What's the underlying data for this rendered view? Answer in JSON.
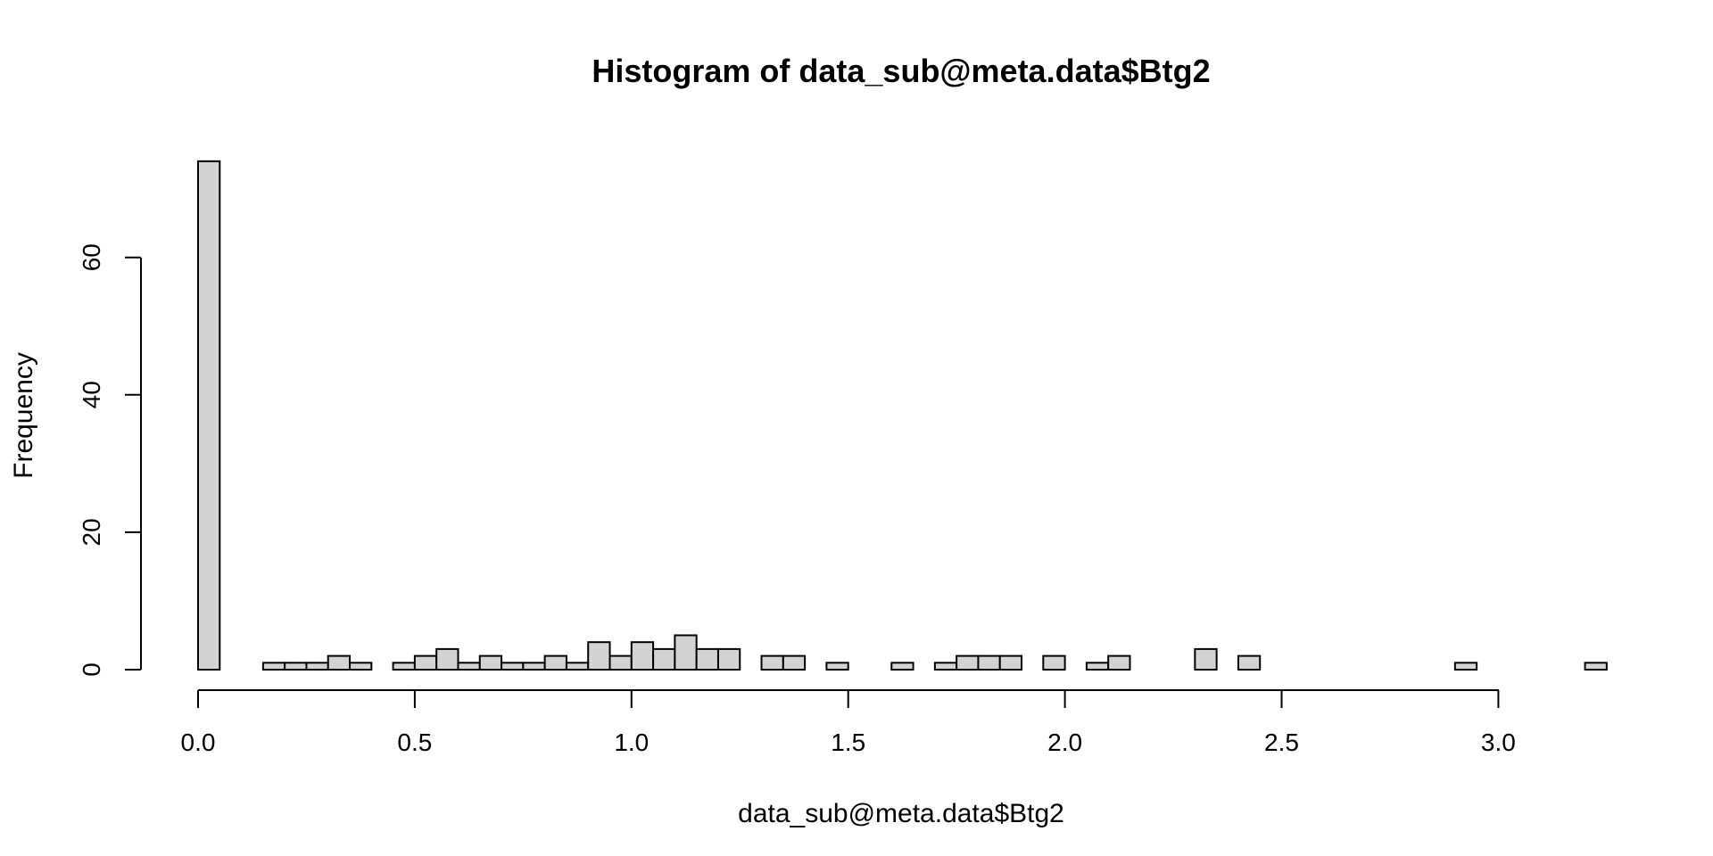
{
  "chart_data": {
    "type": "bar",
    "title": "Histogram of data_sub@meta.data$Btg2",
    "xlabel": "data_sub@meta.data$Btg2",
    "ylabel": "Frequency",
    "bin_width": 0.05,
    "bin_starts": [
      0.0,
      0.05,
      0.1,
      0.15,
      0.2,
      0.25,
      0.3,
      0.35,
      0.4,
      0.45,
      0.5,
      0.55,
      0.6,
      0.65,
      0.7,
      0.75,
      0.8,
      0.85,
      0.9,
      0.95,
      1.0,
      1.05,
      1.1,
      1.15,
      1.2,
      1.25,
      1.3,
      1.35,
      1.4,
      1.45,
      1.5,
      1.55,
      1.6,
      1.65,
      1.7,
      1.75,
      1.8,
      1.85,
      1.9,
      1.95,
      2.0,
      2.05,
      2.1,
      2.15,
      2.2,
      2.25,
      2.3,
      2.35,
      2.4,
      2.45,
      2.5,
      2.55,
      2.6,
      2.65,
      2.7,
      2.75,
      2.8,
      2.85,
      2.9,
      2.95,
      3.0,
      3.05,
      3.1,
      3.15,
      3.2
    ],
    "values": [
      74,
      0,
      0,
      1,
      1,
      1,
      2,
      1,
      0,
      1,
      2,
      3,
      1,
      2,
      1,
      1,
      2,
      1,
      4,
      2,
      4,
      3,
      5,
      3,
      3,
      0,
      2,
      2,
      0,
      1,
      0,
      0,
      1,
      0,
      1,
      2,
      2,
      2,
      0,
      2,
      0,
      1,
      2,
      0,
      0,
      0,
      3,
      0,
      2,
      0,
      0,
      0,
      0,
      0,
      0,
      0,
      0,
      0,
      1,
      0,
      0,
      0,
      0,
      0,
      1
    ],
    "xlim": [
      0,
      3.25
    ],
    "ylim": [
      0,
      74
    ],
    "x_ticks": [
      "0.0",
      "0.5",
      "1.0",
      "1.5",
      "2.0",
      "2.5",
      "3.0"
    ],
    "x_tick_values": [
      0,
      0.5,
      1.0,
      1.5,
      2.0,
      2.5,
      3.0
    ],
    "y_ticks": [
      "0",
      "20",
      "40",
      "60"
    ],
    "y_tick_values": [
      0,
      20,
      40,
      60
    ],
    "grid": false,
    "legend": false
  }
}
